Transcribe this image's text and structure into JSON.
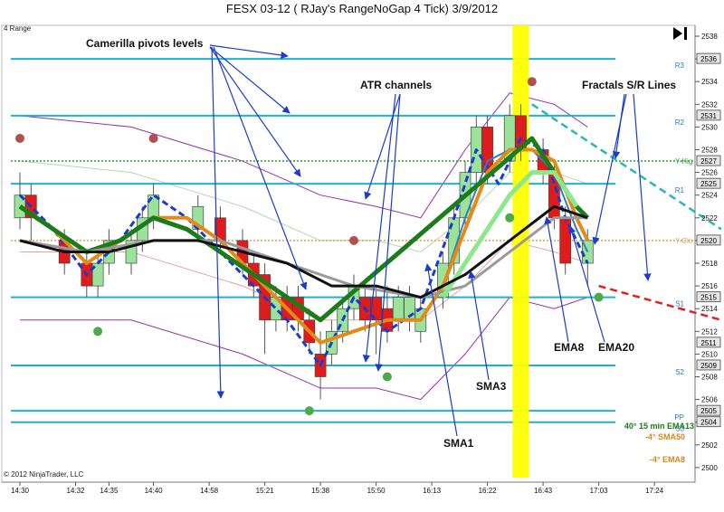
{
  "chart_data": {
    "type": "line",
    "title": "FESX 03-12 ( RJay's RangeNoGap  4 Tick)  3/9/2012",
    "subtitle": "4 Range",
    "copyright": "© 2012 NinjaTrader, LLC",
    "ylim": [
      2498,
      2540
    ],
    "y_ticks": [
      2500,
      2502,
      2504,
      2506,
      2508,
      2510,
      2512,
      2514,
      2516,
      2518,
      2520,
      2522,
      2524,
      2526,
      2528,
      2530,
      2532,
      2534,
      2536,
      2538
    ],
    "x_ticks": [
      "14:30",
      "14:32",
      "14:35",
      "14:40",
      "14:58",
      "15:21",
      "15:38",
      "15:50",
      "16:13",
      "16:22",
      "16:43",
      "17:03",
      "17:24"
    ],
    "x_tick_bars": [
      0,
      5,
      8,
      12,
      17,
      22,
      27,
      32,
      37,
      42,
      47,
      52,
      57
    ],
    "bar_count": 63,
    "pivot_levels": [
      {
        "name": "R3",
        "value": 2536
      },
      {
        "name": "R2",
        "value": 2531
      },
      {
        "name": "R1",
        "value": 2525
      },
      {
        "name": "S1",
        "value": 2515
      },
      {
        "name": "S2",
        "value": 2509
      },
      {
        "name": "PP",
        "value": 2505
      },
      {
        "name": "S3",
        "value": 2504
      }
    ],
    "other_levels": [
      {
        "name": "Y-High",
        "label": "Y-Hig",
        "value": 2527,
        "color": "#2e9e2e"
      },
      {
        "name": "Y-Close",
        "label": "Y-Clo",
        "value": 2520,
        "color": "#e0a050"
      }
    ],
    "price_boxes": [
      {
        "value": 2536,
        "text": "2536"
      },
      {
        "value": 2531,
        "text": "2531"
      },
      {
        "value": 2527,
        "text": "2527"
      },
      {
        "value": 2525,
        "text": "2525"
      },
      {
        "value": 2520,
        "text": "2520"
      },
      {
        "value": 2515,
        "text": "2515"
      },
      {
        "value": 2511,
        "text": "2511"
      },
      {
        "value": 2509,
        "text": "2509"
      },
      {
        "value": 2505,
        "text": "2505"
      },
      {
        "value": 2504,
        "text": "2504"
      }
    ],
    "candles": [
      {
        "i": 0,
        "o": 2522,
        "c": 2524,
        "h": 2526,
        "l": 2521
      },
      {
        "i": 1,
        "o": 2524,
        "c": 2522,
        "h": 2525,
        "l": 2520
      },
      {
        "i": 4,
        "o": 2520,
        "c": 2518,
        "h": 2521,
        "l": 2517
      },
      {
        "i": 6,
        "o": 2518,
        "c": 2516,
        "h": 2519,
        "l": 2515
      },
      {
        "i": 7,
        "o": 2516,
        "c": 2518,
        "h": 2519,
        "l": 2515
      },
      {
        "i": 8,
        "o": 2518,
        "c": 2520,
        "h": 2521,
        "l": 2517
      },
      {
        "i": 10,
        "o": 2518,
        "c": 2520,
        "h": 2521,
        "l": 2517
      },
      {
        "i": 11,
        "o": 2520,
        "c": 2522,
        "h": 2523,
        "l": 2519
      },
      {
        "i": 12,
        "o": 2522,
        "c": 2524,
        "h": 2525,
        "l": 2521
      },
      {
        "i": 16,
        "o": 2521,
        "c": 2523,
        "h": 2524,
        "l": 2520
      },
      {
        "i": 18,
        "o": 2522,
        "c": 2520,
        "h": 2523,
        "l": 2519
      },
      {
        "i": 20,
        "o": 2520,
        "c": 2518,
        "h": 2521,
        "l": 2517
      },
      {
        "i": 21,
        "o": 2518,
        "c": 2516,
        "h": 2519,
        "l": 2515
      },
      {
        "i": 22,
        "o": 2517,
        "c": 2513,
        "h": 2518,
        "l": 2510
      },
      {
        "i": 23,
        "o": 2513,
        "c": 2515,
        "h": 2516,
        "l": 2512
      },
      {
        "i": 24,
        "o": 2515,
        "c": 2513,
        "h": 2516,
        "l": 2512
      },
      {
        "i": 25,
        "o": 2515,
        "c": 2513,
        "h": 2516,
        "l": 2512
      },
      {
        "i": 26,
        "o": 2513,
        "c": 2511,
        "h": 2514,
        "l": 2510
      },
      {
        "i": 27,
        "o": 2510,
        "c": 2508,
        "h": 2512,
        "l": 2506
      },
      {
        "i": 28,
        "o": 2510,
        "c": 2512,
        "h": 2513,
        "l": 2509
      },
      {
        "i": 29,
        "o": 2512,
        "c": 2514,
        "h": 2515,
        "l": 2511
      },
      {
        "i": 30,
        "o": 2514,
        "c": 2516,
        "h": 2517,
        "l": 2513
      },
      {
        "i": 31,
        "o": 2515,
        "c": 2513,
        "h": 2516,
        "l": 2512
      },
      {
        "i": 32,
        "o": 2515,
        "c": 2513,
        "h": 2516,
        "l": 2510
      },
      {
        "i": 33,
        "o": 2514,
        "c": 2512,
        "h": 2516,
        "l": 2511
      },
      {
        "i": 34,
        "o": 2513,
        "c": 2515,
        "h": 2516,
        "l": 2512
      },
      {
        "i": 35,
        "o": 2513,
        "c": 2515,
        "h": 2516,
        "l": 2512
      },
      {
        "i": 36,
        "o": 2512,
        "c": 2514,
        "h": 2515,
        "l": 2511
      },
      {
        "i": 38,
        "o": 2515,
        "c": 2518,
        "h": 2519,
        "l": 2514
      },
      {
        "i": 39,
        "o": 2518,
        "c": 2522,
        "h": 2523,
        "l": 2517
      },
      {
        "i": 40,
        "o": 2522,
        "c": 2526,
        "h": 2527,
        "l": 2521
      },
      {
        "i": 41,
        "o": 2526,
        "c": 2530,
        "h": 2531,
        "l": 2525
      },
      {
        "i": 42,
        "o": 2530,
        "c": 2526,
        "h": 2531,
        "l": 2525
      },
      {
        "i": 44,
        "o": 2527,
        "c": 2531,
        "h": 2532,
        "l": 2526
      },
      {
        "i": 45,
        "o": 2531,
        "c": 2528,
        "h": 2532,
        "l": 2527
      },
      {
        "i": 47,
        "o": 2528,
        "c": 2526,
        "h": 2529,
        "l": 2525
      },
      {
        "i": 48,
        "o": 2526,
        "c": 2522,
        "h": 2527,
        "l": 2521
      },
      {
        "i": 49,
        "o": 2522,
        "c": 2518,
        "h": 2523,
        "l": 2517
      },
      {
        "i": 51,
        "o": 2518,
        "c": 2520,
        "h": 2521,
        "l": 2516
      }
    ],
    "series": [
      {
        "name": "SMA1",
        "color": "#1a3ccc",
        "dashed": true,
        "width": 3,
        "points": [
          [
            0,
            2524
          ],
          [
            3,
            2521
          ],
          [
            6,
            2517
          ],
          [
            9,
            2520
          ],
          [
            12,
            2524
          ],
          [
            15,
            2522
          ],
          [
            18,
            2519
          ],
          [
            21,
            2516
          ],
          [
            24,
            2513
          ],
          [
            27,
            2509
          ],
          [
            30,
            2515
          ],
          [
            33,
            2512
          ],
          [
            36,
            2514
          ],
          [
            39,
            2522
          ],
          [
            41,
            2528
          ],
          [
            43,
            2525
          ],
          [
            45,
            2529
          ],
          [
            47,
            2528
          ],
          [
            49,
            2522
          ],
          [
            51,
            2518
          ]
        ]
      },
      {
        "name": "SMA3",
        "color": "#2f7fbf",
        "dashed": false,
        "width": 2,
        "points": [
          [
            38,
            2516
          ],
          [
            40,
            2522
          ],
          [
            42,
            2527
          ],
          [
            44,
            2528
          ],
          [
            46,
            2528
          ],
          [
            48,
            2526
          ],
          [
            50,
            2521
          ],
          [
            51,
            2519
          ]
        ]
      },
      {
        "name": "EMA8",
        "color": "#e38a17",
        "dashed": false,
        "width": 4,
        "points": [
          [
            0,
            2523
          ],
          [
            3,
            2521
          ],
          [
            6,
            2518
          ],
          [
            9,
            2520
          ],
          [
            12,
            2522
          ],
          [
            15,
            2522
          ],
          [
            18,
            2520
          ],
          [
            21,
            2517
          ],
          [
            24,
            2514
          ],
          [
            27,
            2511
          ],
          [
            30,
            2512
          ],
          [
            33,
            2513
          ],
          [
            36,
            2513
          ],
          [
            38,
            2516
          ],
          [
            40,
            2521
          ],
          [
            42,
            2526
          ],
          [
            44,
            2528
          ],
          [
            46,
            2528
          ],
          [
            48,
            2527
          ],
          [
            50,
            2522
          ],
          [
            51,
            2520
          ]
        ]
      },
      {
        "name": "EMA20",
        "color": "#1a7d1a",
        "dashed": false,
        "width": 5,
        "points": [
          [
            0,
            2523
          ],
          [
            3,
            2521
          ],
          [
            6,
            2519
          ],
          [
            9,
            2520
          ],
          [
            12,
            2522
          ],
          [
            15,
            2521
          ],
          [
            18,
            2519
          ],
          [
            21,
            2517
          ],
          [
            24,
            2515
          ],
          [
            27,
            2513
          ],
          [
            46,
            2529
          ],
          [
            48,
            2526
          ],
          [
            50,
            2523
          ],
          [
            51,
            2522
          ]
        ]
      },
      {
        "name": "SMA50",
        "color": "#9a9a9a",
        "dashed": false,
        "width": 3,
        "points": [
          [
            0,
            2520
          ],
          [
            6,
            2519
          ],
          [
            12,
            2520
          ],
          [
            18,
            2520
          ],
          [
            24,
            2518
          ],
          [
            30,
            2516
          ],
          [
            36,
            2515
          ],
          [
            40,
            2516
          ],
          [
            44,
            2519
          ],
          [
            48,
            2522
          ],
          [
            51,
            2522
          ]
        ]
      },
      {
        "name": "EMA13",
        "color": "#8de88d",
        "dashed": false,
        "width": 5,
        "points": [
          [
            38,
            2515
          ],
          [
            40,
            2518
          ],
          [
            42,
            2521
          ],
          [
            44,
            2524
          ],
          [
            46,
            2526
          ],
          [
            48,
            2526
          ],
          [
            50,
            2523
          ]
        ]
      },
      {
        "name": "Black MA",
        "color": "#111111",
        "dashed": false,
        "width": 3,
        "points": [
          [
            0,
            2520
          ],
          [
            4,
            2519
          ],
          [
            8,
            2519
          ],
          [
            12,
            2520
          ],
          [
            16,
            2520
          ],
          [
            20,
            2519
          ],
          [
            24,
            2518
          ],
          [
            28,
            2516
          ],
          [
            32,
            2516
          ],
          [
            36,
            2515
          ],
          [
            40,
            2517
          ],
          [
            44,
            2520
          ],
          [
            48,
            2523
          ],
          [
            51,
            2522
          ]
        ]
      }
    ],
    "atr_channels": [
      {
        "color": "#9b2db0",
        "points": [
          [
            0,
            2531
          ],
          [
            10,
            2530
          ],
          [
            20,
            2527
          ],
          [
            27,
            2524
          ],
          [
            32,
            2523
          ],
          [
            36,
            2522
          ],
          [
            40,
            2528
          ],
          [
            44,
            2533
          ],
          [
            48,
            2532
          ],
          [
            51,
            2530
          ]
        ]
      },
      {
        "color": "#9b2db0",
        "points": [
          [
            0,
            2513
          ],
          [
            10,
            2513
          ],
          [
            20,
            2510
          ],
          [
            27,
            2507
          ],
          [
            32,
            2507
          ],
          [
            36,
            2506
          ],
          [
            40,
            2510
          ],
          [
            44,
            2515
          ],
          [
            48,
            2514
          ],
          [
            51,
            2515
          ]
        ]
      },
      {
        "color": "#e8a0a0",
        "points": [
          [
            0,
            2519
          ],
          [
            10,
            2519
          ],
          [
            20,
            2516
          ],
          [
            27,
            2513
          ],
          [
            32,
            2513
          ],
          [
            36,
            2513
          ],
          [
            40,
            2516
          ],
          [
            44,
            2520
          ],
          [
            48,
            2519
          ],
          [
            51,
            2518
          ]
        ]
      },
      {
        "color": "#b0d8b0",
        "points": [
          [
            0,
            2527
          ],
          [
            10,
            2526
          ],
          [
            20,
            2523
          ],
          [
            27,
            2520
          ],
          [
            32,
            2520
          ],
          [
            36,
            2519
          ],
          [
            40,
            2522
          ],
          [
            44,
            2526
          ],
          [
            48,
            2526
          ],
          [
            51,
            2525
          ]
        ]
      }
    ],
    "fractal_points": [
      {
        "i": 0,
        "v": 2529,
        "color": "#b05050"
      },
      {
        "i": 12,
        "v": 2529,
        "color": "#b05050"
      },
      {
        "i": 30,
        "v": 2520,
        "color": "#b05050"
      },
      {
        "i": 46,
        "v": 2534,
        "color": "#b05050"
      },
      {
        "i": 7,
        "v": 2512,
        "color": "#4caa4c"
      },
      {
        "i": 26,
        "v": 2505,
        "color": "#4caa4c"
      },
      {
        "i": 33,
        "v": 2508,
        "color": "#4caa4c"
      },
      {
        "i": 44,
        "v": 2522,
        "color": "#4caa4c"
      },
      {
        "i": 52,
        "v": 2515,
        "color": "#4caa4c"
      }
    ],
    "trend_lines": [
      {
        "name": "Fractal resistance",
        "color": "#2bb5b5",
        "from": [
          46,
          2532
        ],
        "to": [
          63,
          2521
        ]
      },
      {
        "name": "Fractal support",
        "color": "#dd2222",
        "from": [
          52,
          2516
        ],
        "to": [
          63,
          2513
        ]
      }
    ],
    "highlight_bar": 45,
    "annotations": [
      {
        "text": "Camerilla pivots levels"
      },
      {
        "text": "ATR channels"
      },
      {
        "text": "Fractals S/R Lines"
      },
      {
        "text": "SMA1"
      },
      {
        "text": "SMA3"
      },
      {
        "text": "EMA8"
      },
      {
        "text": "EMA20"
      }
    ],
    "legend": [
      {
        "text": "40° 15 min EMA13",
        "color": "#1a7d1a"
      },
      {
        "text": "-4° SMA50",
        "color": "#d08a20"
      },
      {
        "text": "-4° EMA8",
        "color": "#d08a20"
      }
    ]
  }
}
